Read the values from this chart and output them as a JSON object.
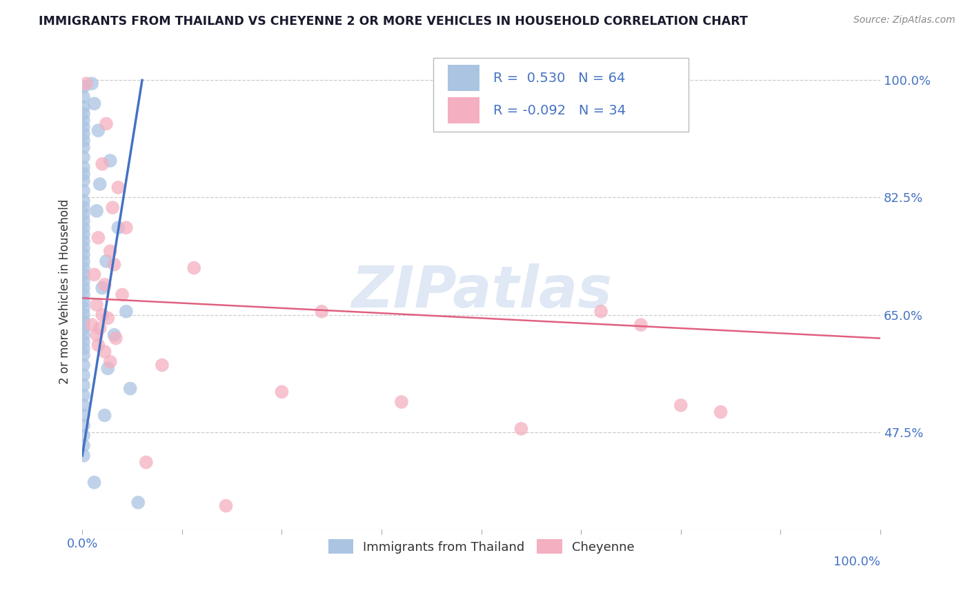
{
  "title": "IMMIGRANTS FROM THAILAND VS CHEYENNE 2 OR MORE VEHICLES IN HOUSEHOLD CORRELATION CHART",
  "source": "Source: ZipAtlas.com",
  "ylabel": "2 or more Vehicles in Household",
  "legend_label1": "Immigrants from Thailand",
  "legend_label2": "Cheyenne",
  "r1": "0.530",
  "n1": "64",
  "r2": "-0.092",
  "n2": "34",
  "blue_color": "#aac4e2",
  "pink_color": "#f4afc0",
  "blue_line_color": "#4472c4",
  "pink_line_color": "#e06080",
  "label_color": "#4472c4",
  "blue_scatter": [
    [
      0.15,
      99.0
    ],
    [
      0.15,
      97.5
    ],
    [
      0.15,
      96.0
    ],
    [
      0.15,
      95.0
    ],
    [
      0.15,
      94.0
    ],
    [
      0.15,
      93.0
    ],
    [
      0.15,
      92.0
    ],
    [
      0.15,
      91.0
    ],
    [
      0.15,
      90.0
    ],
    [
      0.15,
      88.5
    ],
    [
      0.15,
      87.0
    ],
    [
      0.15,
      86.0
    ],
    [
      0.15,
      85.0
    ],
    [
      0.15,
      83.5
    ],
    [
      0.15,
      82.0
    ],
    [
      0.15,
      81.0
    ],
    [
      0.15,
      80.0
    ],
    [
      0.15,
      79.0
    ],
    [
      0.15,
      78.0
    ],
    [
      0.15,
      77.0
    ],
    [
      0.15,
      76.0
    ],
    [
      0.15,
      75.0
    ],
    [
      0.15,
      74.0
    ],
    [
      0.15,
      73.0
    ],
    [
      0.15,
      72.0
    ],
    [
      0.15,
      71.0
    ],
    [
      0.15,
      70.0
    ],
    [
      0.15,
      69.0
    ],
    [
      0.15,
      68.0
    ],
    [
      0.15,
      67.0
    ],
    [
      0.15,
      66.0
    ],
    [
      0.15,
      65.0
    ],
    [
      0.15,
      64.0
    ],
    [
      0.15,
      63.0
    ],
    [
      0.15,
      62.0
    ],
    [
      0.15,
      61.0
    ],
    [
      0.15,
      60.0
    ],
    [
      0.15,
      59.0
    ],
    [
      0.15,
      57.5
    ],
    [
      0.15,
      56.0
    ],
    [
      0.15,
      54.5
    ],
    [
      0.15,
      53.0
    ],
    [
      0.15,
      51.5
    ],
    [
      0.15,
      50.0
    ],
    [
      0.15,
      48.5
    ],
    [
      0.15,
      47.0
    ],
    [
      0.15,
      45.5
    ],
    [
      0.15,
      44.0
    ],
    [
      1.2,
      99.5
    ],
    [
      1.5,
      96.5
    ],
    [
      2.0,
      92.5
    ],
    [
      3.5,
      88.0
    ],
    [
      2.2,
      84.5
    ],
    [
      1.8,
      80.5
    ],
    [
      4.5,
      78.0
    ],
    [
      3.0,
      73.0
    ],
    [
      2.5,
      69.0
    ],
    [
      5.5,
      65.5
    ],
    [
      4.0,
      62.0
    ],
    [
      3.2,
      57.0
    ],
    [
      6.0,
      54.0
    ],
    [
      2.8,
      50.0
    ],
    [
      1.5,
      40.0
    ],
    [
      7.0,
      37.0
    ]
  ],
  "pink_scatter": [
    [
      0.5,
      99.5
    ],
    [
      3.0,
      93.5
    ],
    [
      2.5,
      87.5
    ],
    [
      4.5,
      84.0
    ],
    [
      3.8,
      81.0
    ],
    [
      5.5,
      78.0
    ],
    [
      2.0,
      76.5
    ],
    [
      3.5,
      74.5
    ],
    [
      4.0,
      72.5
    ],
    [
      1.5,
      71.0
    ],
    [
      2.8,
      69.5
    ],
    [
      5.0,
      68.0
    ],
    [
      1.8,
      66.5
    ],
    [
      2.5,
      65.0
    ],
    [
      3.2,
      64.5
    ],
    [
      1.2,
      63.5
    ],
    [
      2.2,
      63.0
    ],
    [
      1.8,
      62.0
    ],
    [
      4.2,
      61.5
    ],
    [
      2.0,
      60.5
    ],
    [
      2.8,
      59.5
    ],
    [
      3.5,
      58.0
    ],
    [
      14.0,
      72.0
    ],
    [
      25.0,
      53.5
    ],
    [
      30.0,
      65.5
    ],
    [
      40.0,
      52.0
    ],
    [
      55.0,
      48.0
    ],
    [
      65.0,
      65.5
    ],
    [
      70.0,
      63.5
    ],
    [
      75.0,
      51.5
    ],
    [
      80.0,
      50.5
    ],
    [
      8.0,
      43.0
    ],
    [
      10.0,
      57.5
    ],
    [
      18.0,
      36.5
    ]
  ],
  "blue_line_x": [
    0.0,
    7.5
  ],
  "blue_line_y": [
    44.0,
    100.0
  ],
  "pink_line_x": [
    0.0,
    100.0
  ],
  "pink_line_y": [
    67.5,
    61.5
  ],
  "xmin": 0.0,
  "xmax": 100.0,
  "ymin": 33.0,
  "ymax": 104.0,
  "ytick_vals": [
    47.5,
    65.0,
    82.5,
    100.0
  ],
  "xtick_vals": [
    0,
    12.5,
    25,
    37.5,
    50,
    62.5,
    75,
    87.5,
    100
  ],
  "watermark": "ZIPatlas",
  "grid_color": "#cccccc",
  "background": "#ffffff"
}
